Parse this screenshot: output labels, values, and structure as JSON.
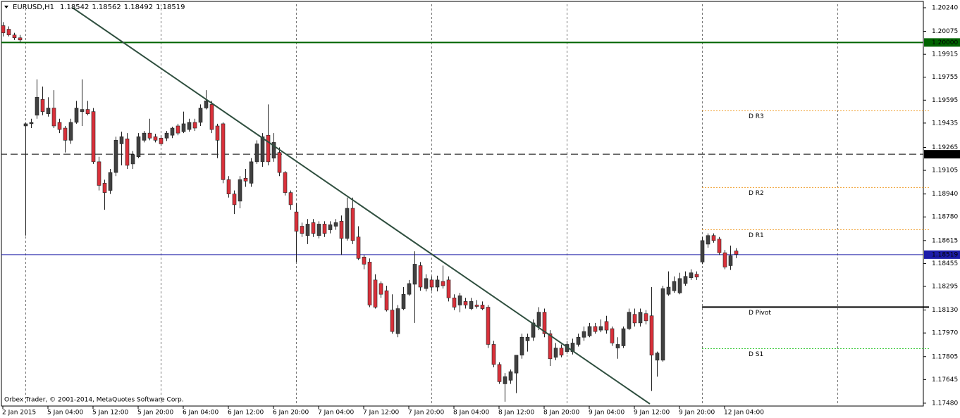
{
  "chart_data": {
    "type": "candlestick",
    "symbol": "EURUSD,H1",
    "copyright": "Orbex Trader, © 2001-2014, MetaQuotes Software Corp.",
    "up_color": "#404040",
    "down_color": "#d9303a",
    "open": [
      1.20115,
      1.2009,
      1.2005,
      1.2003,
      1.19415,
      1.1943,
      1.1949,
      1.196,
      1.195,
      1.1954,
      1.1944,
      1.194,
      1.19315,
      1.1944,
      1.19515,
      1.1953,
      1.19515,
      1.19165,
      1.19015,
      1.18965,
      1.1909,
      1.1929,
      1.19325,
      1.1915,
      1.192,
      1.19315,
      1.19365,
      1.1934,
      1.1933,
      1.1933,
      1.1935,
      1.19415,
      1.19375,
      1.1939,
      1.1944,
      1.1944,
      1.1954,
      1.19565,
      1.19415,
      1.1943,
      1.1904,
      1.1894,
      1.1889,
      1.1905,
      1.19015,
      1.19165,
      1.19165,
      1.1935,
      1.1919,
      1.1923,
      1.1909,
      1.1895,
      1.18815,
      1.18715,
      1.1865,
      1.1874,
      1.1865,
      1.1873,
      1.1869,
      1.18715,
      1.1875,
      1.1863,
      1.1884,
      1.1864,
      1.185,
      1.18465,
      1.1834,
      1.18315,
      1.18265,
      1.1813,
      1.17965,
      1.1814,
      1.1824,
      1.1831,
      1.1844,
      1.1828,
      1.1834,
      1.1829,
      1.1833,
      1.1834,
      1.18215,
      1.18165,
      1.1819,
      1.1814,
      1.18165,
      1.18165,
      1.1815,
      1.1789,
      1.1775,
      1.17615,
      1.1764,
      1.1769,
      1.17815,
      1.17915,
      1.1794,
      1.18015,
      1.18115,
      1.17965,
      1.178,
      1.17865,
      1.1784,
      1.1784,
      1.1789,
      1.1794,
      1.1795,
      1.18015,
      1.1799,
      1.1805,
      1.18,
      1.17865,
      1.1788,
      1.18,
      1.181,
      1.1804,
      1.18105,
      1.1809,
      1.1778,
      1.1778,
      1.1824,
      1.18265,
      1.1825,
      1.18315,
      1.18355,
      1.1838,
      1.18465,
      1.1859,
      1.1865,
      1.18625,
      1.1853,
      1.1844,
      1.18542
    ],
    "high": [
      1.2014,
      1.2011,
      1.20065,
      1.2005,
      1.1944,
      1.19465,
      1.1974,
      1.1969,
      1.19615,
      1.19665,
      1.19465,
      1.19415,
      1.19465,
      1.1959,
      1.1974,
      1.1959,
      1.1954,
      1.192,
      1.1904,
      1.19115,
      1.1934,
      1.19375,
      1.19365,
      1.1924,
      1.19365,
      1.1938,
      1.19465,
      1.1936,
      1.1935,
      1.1938,
      1.1941,
      1.1943,
      1.19515,
      1.19465,
      1.19465,
      1.19565,
      1.19665,
      1.1959,
      1.1943,
      1.1944,
      1.19065,
      1.18965,
      1.19065,
      1.19115,
      1.1919,
      1.19315,
      1.19365,
      1.19565,
      1.19365,
      1.19265,
      1.191,
      1.18965,
      1.18875,
      1.1874,
      1.18765,
      1.18765,
      1.1875,
      1.1875,
      1.1875,
      1.18765,
      1.1879,
      1.18915,
      1.18915,
      1.18715,
      1.18515,
      1.1849,
      1.1838,
      1.1833,
      1.183,
      1.1824,
      1.18165,
      1.1829,
      1.1834,
      1.1854,
      1.18465,
      1.1838,
      1.18365,
      1.1837,
      1.1844,
      1.18365,
      1.1824,
      1.1825,
      1.18215,
      1.18215,
      1.182,
      1.1819,
      1.18165,
      1.17915,
      1.17765,
      1.1769,
      1.17715,
      1.17815,
      1.17965,
      1.17965,
      1.18065,
      1.1815,
      1.1814,
      1.1799,
      1.179,
      1.1789,
      1.17915,
      1.1793,
      1.17965,
      1.18015,
      1.1804,
      1.1804,
      1.18065,
      1.1809,
      1.18015,
      1.1794,
      1.18015,
      1.1814,
      1.1814,
      1.1814,
      1.1813,
      1.1829,
      1.1784,
      1.183,
      1.184,
      1.18365,
      1.1839,
      1.184,
      1.18415,
      1.184,
      1.1864,
      1.18665,
      1.18665,
      1.1864,
      1.1855,
      1.1858,
      1.18562
    ],
    "low": [
      1.2004,
      1.2004,
      1.20015,
      1.2,
      1.1865,
      1.194,
      1.19465,
      1.1949,
      1.1948,
      1.194,
      1.19365,
      1.1923,
      1.1929,
      1.1943,
      1.19415,
      1.1949,
      1.1915,
      1.18965,
      1.1883,
      1.1894,
      1.19065,
      1.1914,
      1.19115,
      1.19115,
      1.1919,
      1.193,
      1.19315,
      1.193,
      1.19275,
      1.1931,
      1.1933,
      1.1935,
      1.19365,
      1.19375,
      1.1938,
      1.19415,
      1.1953,
      1.19365,
      1.1919,
      1.19015,
      1.18915,
      1.188,
      1.1884,
      1.1899,
      1.1899,
      1.1915,
      1.1913,
      1.1914,
      1.19165,
      1.19065,
      1.1893,
      1.1883,
      1.18465,
      1.1864,
      1.1859,
      1.1864,
      1.1863,
      1.1864,
      1.18665,
      1.1869,
      1.18515,
      1.18615,
      1.1859,
      1.1848,
      1.18415,
      1.1815,
      1.1814,
      1.18215,
      1.1812,
      1.17965,
      1.1794,
      1.1813,
      1.1823,
      1.1804,
      1.18265,
      1.1826,
      1.18265,
      1.1826,
      1.1828,
      1.1819,
      1.1813,
      1.18115,
      1.1814,
      1.1813,
      1.1814,
      1.1813,
      1.17865,
      1.1773,
      1.17615,
      1.1749,
      1.17615,
      1.1755,
      1.1779,
      1.1784,
      1.17915,
      1.1799,
      1.1794,
      1.1774,
      1.1778,
      1.178,
      1.17825,
      1.1782,
      1.17875,
      1.17915,
      1.1794,
      1.17965,
      1.17975,
      1.17965,
      1.1788,
      1.1779,
      1.17865,
      1.1799,
      1.18015,
      1.18015,
      1.1803,
      1.17565,
      1.17665,
      1.1777,
      1.1823,
      1.1825,
      1.1824,
      1.183,
      1.1834,
      1.1834,
      1.1845,
      1.18565,
      1.186,
      1.18515,
      1.18415,
      1.1841,
      1.18492
    ],
    "close": [
      1.20065,
      1.2005,
      1.2003,
      1.20015,
      1.1943,
      1.1944,
      1.19615,
      1.19515,
      1.1954,
      1.19415,
      1.1939,
      1.19315,
      1.1944,
      1.1954,
      1.1953,
      1.195,
      1.19165,
      1.19,
      1.1895,
      1.1909,
      1.19315,
      1.1934,
      1.1914,
      1.19215,
      1.1934,
      1.19365,
      1.1933,
      1.19315,
      1.1929,
      1.19365,
      1.194,
      1.19365,
      1.1943,
      1.1944,
      1.194,
      1.1954,
      1.1959,
      1.1939,
      1.19315,
      1.1904,
      1.1894,
      1.18865,
      1.1904,
      1.1903,
      1.19165,
      1.1929,
      1.1934,
      1.19165,
      1.193,
      1.1909,
      1.1895,
      1.18865,
      1.1868,
      1.18665,
      1.1873,
      1.18665,
      1.1873,
      1.18665,
      1.18725,
      1.1874,
      1.1863,
      1.1884,
      1.18615,
      1.1849,
      1.1845,
      1.18165,
      1.1815,
      1.1824,
      1.1813,
      1.1798,
      1.1814,
      1.1824,
      1.18315,
      1.1845,
      1.1829,
      1.1835,
      1.1829,
      1.1834,
      1.183,
      1.18215,
      1.1815,
      1.1823,
      1.18165,
      1.1819,
      1.18155,
      1.1814,
      1.1789,
      1.1775,
      1.1763,
      1.17665,
      1.177,
      1.17815,
      1.1794,
      1.1794,
      1.1804,
      1.18115,
      1.17965,
      1.1779,
      1.17865,
      1.17815,
      1.1789,
      1.179,
      1.1794,
      1.1798,
      1.18015,
      1.1798,
      1.18015,
      1.1799,
      1.179,
      1.1789,
      1.18,
      1.18115,
      1.1804,
      1.18115,
      1.18055,
      1.17815,
      1.1783,
      1.1828,
      1.1829,
      1.1833,
      1.1835,
      1.18365,
      1.1839,
      1.1836,
      1.18615,
      1.1865,
      1.18615,
      1.1853,
      1.1843,
      1.1851,
      1.18519
    ],
    "xlim": [
      -0.5,
      163.25
    ],
    "xticks": [
      {
        "value": 0,
        "label": "2 Jan 2015"
      },
      {
        "value": 8,
        "label": "5 Jan 04:00"
      },
      {
        "value": 16,
        "label": "5 Jan 12:00"
      },
      {
        "value": 24,
        "label": "5 Jan 20:00"
      },
      {
        "value": 32,
        "label": "6 Jan 04:00"
      },
      {
        "value": 40,
        "label": "6 Jan 12:00"
      },
      {
        "value": 48,
        "label": "6 Jan 20:00"
      },
      {
        "value": 56,
        "label": "7 Jan 04:00"
      },
      {
        "value": 64,
        "label": "7 Jan 12:00"
      },
      {
        "value": 72,
        "label": "7 Jan 20:00"
      },
      {
        "value": 80,
        "label": "8 Jan 04:00"
      },
      {
        "value": 88,
        "label": "8 Jan 12:00"
      },
      {
        "value": 96,
        "label": "8 Jan 20:00"
      },
      {
        "value": 104,
        "label": "9 Jan 04:00"
      },
      {
        "value": 112,
        "label": "9 Jan 12:00"
      },
      {
        "value": 120,
        "label": "9 Jan 20:00"
      },
      {
        "value": 128,
        "label": "12 Jan 04:00"
      }
    ],
    "separators": [
      4,
      28,
      52,
      76,
      100,
      124,
      148
    ],
    "ylim": [
      1.1746,
      1.20294
    ],
    "yticks": [
      {
        "value": 1.2024,
        "label": "1.20240"
      },
      {
        "value": 1.20075,
        "label": "1.20075"
      },
      {
        "value": 1.19915,
        "label": "1.19915"
      },
      {
        "value": 1.19755,
        "label": "1.19755"
      },
      {
        "value": 1.19595,
        "label": "1.19595"
      },
      {
        "value": 1.19435,
        "label": "1.19435"
      },
      {
        "value": 1.19265,
        "label": "1.19265"
      },
      {
        "value": 1.19105,
        "label": "1.19105"
      },
      {
        "value": 1.1894,
        "label": "1.18940"
      },
      {
        "value": 1.1878,
        "label": "1.18780"
      },
      {
        "value": 1.18615,
        "label": "1.18615"
      },
      {
        "value": 1.18455,
        "label": "1.18455"
      },
      {
        "value": 1.18295,
        "label": "1.18295"
      },
      {
        "value": 1.1813,
        "label": "1.18130"
      },
      {
        "value": 1.1797,
        "label": "1.17970"
      },
      {
        "value": 1.17805,
        "label": "1.17805"
      },
      {
        "value": 1.17645,
        "label": "1.17645"
      },
      {
        "value": 1.1748,
        "label": "1.17480"
      }
    ],
    "hlines": [
      {
        "value": 1.2,
        "label": "1.20000",
        "color": "#006400",
        "style": "solid",
        "width": 2
      },
      {
        "value": 1.1922,
        "label": "1.19220",
        "color": "#000000",
        "style": "dashed",
        "width": 1
      },
      {
        "value": 1.18519,
        "label": "1.18519",
        "color": "#1c1ca8",
        "style": "solid",
        "width": 1
      }
    ],
    "pivot_start": 124,
    "pivots": [
      {
        "label": "D R3",
        "value": 1.19523,
        "color": "#f0a030",
        "style": "dotted"
      },
      {
        "label": "D R2",
        "value": 1.18988,
        "color": "#f0a030",
        "style": "dotted"
      },
      {
        "label": "D R1",
        "value": 1.18693,
        "color": "#f0a030",
        "style": "dotted"
      },
      {
        "label": "D Pivot",
        "value": 1.18153,
        "color": "#000000",
        "style": "solid"
      },
      {
        "label": "D S1",
        "value": 1.17863,
        "color": "#32c832",
        "style": "dotted"
      }
    ],
    "trendline": {
      "x": [
        12.375,
        114.75
      ],
      "y": [
        1.2024,
        1.17475
      ],
      "color": "#2f4f3f"
    }
  }
}
